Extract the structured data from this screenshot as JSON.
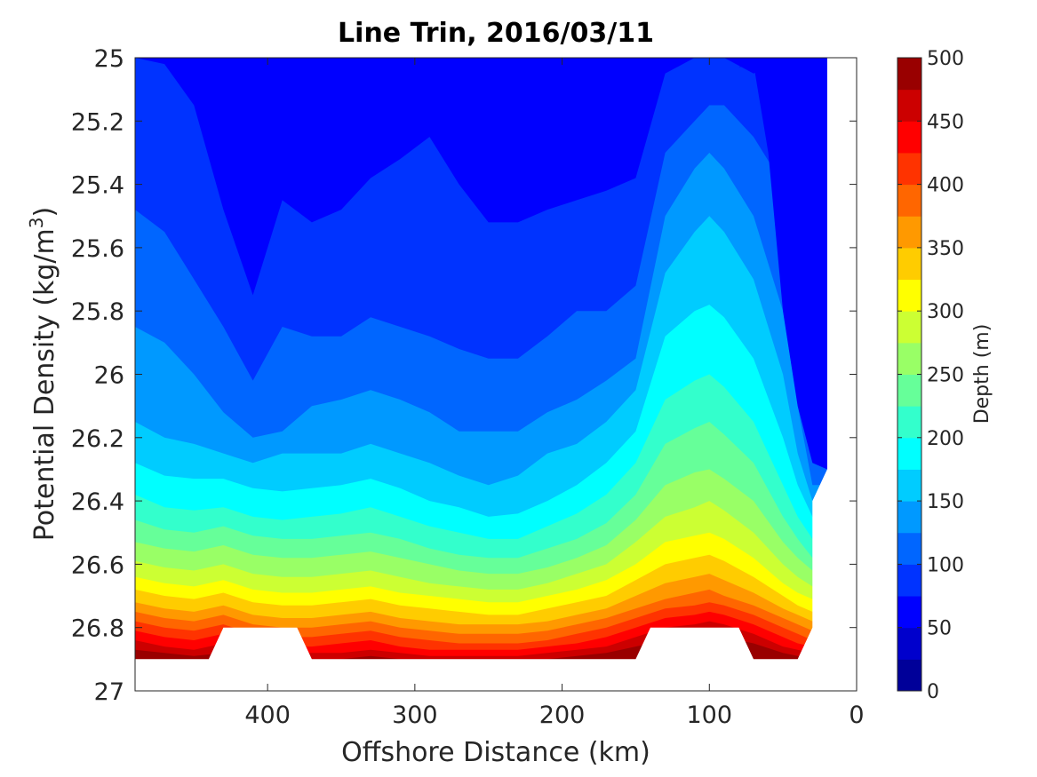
{
  "chart_data": {
    "type": "heatmap",
    "title": "Line Trin, 2016/03/11",
    "xlabel": "Offshore Distance (km)",
    "ylabel_main": "Potential Density (kg/m",
    "ylabel_sup": "3",
    "ylabel_close": ")",
    "xlim": [
      490,
      0
    ],
    "ylim": [
      25,
      27
    ],
    "x_reversed": true,
    "y_reversed": true,
    "x_ticks": [
      400,
      300,
      200,
      100,
      0
    ],
    "x_tick_labels": [
      "400",
      "300",
      "200",
      "100",
      "0"
    ],
    "y_ticks": [
      25,
      25.2,
      25.4,
      25.6,
      25.8,
      26,
      26.2,
      26.4,
      26.6,
      26.8,
      27
    ],
    "y_tick_labels": [
      "25",
      "25.2",
      "25.4",
      "25.6",
      "25.8",
      "26",
      "26.2",
      "26.4",
      "26.6",
      "26.8",
      "27"
    ],
    "colorbar": {
      "label": "Depth (m)",
      "range": [
        0,
        500
      ],
      "levels": 20,
      "ticks": [
        0,
        50,
        100,
        150,
        200,
        250,
        300,
        350,
        400,
        450,
        500
      ],
      "tick_labels": [
        "0",
        "50",
        "100",
        "150",
        "200",
        "250",
        "300",
        "350",
        "400",
        "450",
        "500"
      ],
      "colormap": "jet"
    },
    "grid": false,
    "x": [
      490,
      470,
      450,
      430,
      410,
      390,
      370,
      350,
      330,
      310,
      290,
      270,
      250,
      230,
      210,
      190,
      170,
      150,
      130,
      110,
      100,
      90,
      70,
      50,
      40,
      30,
      20
    ],
    "contours": [
      {
        "level": 75,
        "y": [
          25.0,
          25.02,
          25.15,
          25.48,
          25.75,
          25.45,
          25.52,
          25.48,
          25.38,
          25.32,
          25.25,
          25.4,
          25.52,
          25.52,
          25.48,
          25.45,
          25.42,
          25.38,
          25.05,
          25.0,
          25.0,
          25.0,
          25.05,
          25.0,
          25.0,
          25.0,
          25.0
        ]
      },
      {
        "level": 100,
        "y": [
          25.48,
          25.55,
          25.7,
          25.85,
          26.02,
          25.85,
          25.88,
          25.88,
          25.82,
          25.85,
          25.88,
          25.92,
          25.95,
          25.95,
          25.88,
          25.8,
          25.8,
          25.72,
          25.3,
          25.2,
          25.15,
          25.15,
          25.25,
          25.4,
          25.9,
          26.2,
          26.3
        ]
      },
      {
        "level": 125,
        "y": [
          25.85,
          25.9,
          26.0,
          26.12,
          26.2,
          26.18,
          26.1,
          26.08,
          26.05,
          26.08,
          26.12,
          26.18,
          26.18,
          26.18,
          26.12,
          26.08,
          26.02,
          25.95,
          25.5,
          25.35,
          25.3,
          25.35,
          25.5,
          25.8,
          26.1,
          26.35,
          26.35
        ]
      },
      {
        "level": 150,
        "y": [
          26.15,
          26.2,
          26.22,
          26.25,
          26.28,
          26.25,
          26.25,
          26.25,
          26.22,
          26.25,
          26.28,
          26.32,
          26.35,
          26.32,
          26.25,
          26.22,
          26.15,
          26.05,
          25.68,
          25.55,
          25.5,
          25.55,
          25.7,
          26.0,
          26.25,
          26.4,
          26.4
        ]
      },
      {
        "level": 175,
        "y": [
          26.28,
          26.32,
          26.33,
          26.33,
          26.36,
          26.37,
          26.36,
          26.35,
          26.33,
          26.36,
          26.4,
          26.42,
          26.45,
          26.44,
          26.4,
          26.35,
          26.28,
          26.18,
          25.88,
          25.8,
          25.78,
          25.82,
          25.95,
          26.2,
          26.35,
          26.45,
          26.45
        ]
      },
      {
        "level": 200,
        "y": [
          26.38,
          26.42,
          26.43,
          26.42,
          26.45,
          26.46,
          26.45,
          26.44,
          26.42,
          26.45,
          26.48,
          26.5,
          26.52,
          26.52,
          26.48,
          26.44,
          26.38,
          26.28,
          26.08,
          26.02,
          26.0,
          26.04,
          26.15,
          26.35,
          26.45,
          26.52,
          26.52
        ]
      },
      {
        "level": 225,
        "y": [
          26.46,
          26.49,
          26.5,
          26.48,
          26.51,
          26.52,
          26.52,
          26.51,
          26.5,
          26.52,
          26.55,
          26.57,
          26.58,
          26.58,
          26.55,
          26.52,
          26.47,
          26.38,
          26.22,
          26.17,
          26.15,
          26.19,
          26.28,
          26.45,
          26.52,
          26.58,
          26.58
        ]
      },
      {
        "level": 250,
        "y": [
          26.53,
          26.55,
          26.56,
          26.54,
          26.57,
          26.58,
          26.58,
          26.57,
          26.56,
          26.58,
          26.6,
          26.62,
          26.63,
          26.63,
          26.61,
          26.58,
          26.54,
          26.46,
          26.35,
          26.31,
          26.3,
          26.33,
          26.4,
          26.53,
          26.58,
          26.62,
          26.62
        ]
      },
      {
        "level": 275,
        "y": [
          26.59,
          26.61,
          26.62,
          26.6,
          26.63,
          26.64,
          26.64,
          26.63,
          26.62,
          26.64,
          26.66,
          26.67,
          26.68,
          26.68,
          26.66,
          26.63,
          26.6,
          26.53,
          26.45,
          26.42,
          26.4,
          26.43,
          26.5,
          26.6,
          26.64,
          26.67,
          26.67
        ]
      },
      {
        "level": 300,
        "y": [
          26.64,
          26.66,
          26.67,
          26.65,
          26.68,
          26.69,
          26.69,
          26.68,
          26.67,
          26.69,
          26.7,
          26.71,
          26.72,
          26.72,
          26.7,
          26.68,
          26.65,
          26.6,
          26.53,
          26.51,
          26.5,
          26.52,
          26.58,
          26.66,
          26.69,
          26.71,
          26.71
        ]
      },
      {
        "level": 325,
        "y": [
          26.68,
          26.7,
          26.71,
          26.69,
          26.72,
          26.73,
          26.73,
          26.72,
          26.71,
          26.73,
          26.74,
          26.75,
          26.76,
          26.76,
          26.74,
          26.72,
          26.7,
          26.65,
          26.6,
          26.58,
          26.57,
          26.59,
          26.64,
          26.7,
          26.73,
          26.75,
          26.75
        ]
      },
      {
        "level": 350,
        "y": [
          26.72,
          26.74,
          26.75,
          26.73,
          26.76,
          26.77,
          26.77,
          26.76,
          26.75,
          26.77,
          26.78,
          26.79,
          26.79,
          26.79,
          26.78,
          26.76,
          26.74,
          26.7,
          26.66,
          26.64,
          26.63,
          26.65,
          26.69,
          26.74,
          26.76,
          26.78,
          26.78
        ]
      },
      {
        "level": 375,
        "y": [
          26.75,
          26.77,
          26.78,
          26.76,
          26.79,
          26.8,
          26.8,
          26.79,
          26.78,
          26.8,
          26.81,
          26.82,
          26.82,
          26.82,
          26.81,
          26.79,
          26.77,
          26.74,
          26.71,
          26.69,
          26.68,
          26.7,
          26.73,
          26.77,
          26.79,
          26.81,
          26.81
        ]
      },
      {
        "level": 400,
        "y": [
          26.78,
          26.8,
          26.81,
          26.79,
          26.82,
          26.83,
          26.83,
          26.82,
          26.81,
          26.83,
          26.84,
          26.85,
          26.85,
          26.85,
          26.84,
          26.82,
          26.8,
          26.77,
          26.74,
          26.73,
          26.72,
          26.73,
          26.76,
          26.8,
          26.82,
          26.84,
          26.84
        ]
      },
      {
        "level": 425,
        "y": [
          26.81,
          26.83,
          26.84,
          26.82,
          26.85,
          26.86,
          26.86,
          26.85,
          26.84,
          26.86,
          26.87,
          26.87,
          26.87,
          26.87,
          26.86,
          26.85,
          26.83,
          26.8,
          26.77,
          26.76,
          26.75,
          26.76,
          26.79,
          26.83,
          26.85,
          26.86,
          26.86
        ]
      },
      {
        "level": 450,
        "y": [
          26.84,
          26.86,
          26.87,
          26.85,
          26.88,
          26.88,
          26.88,
          26.88,
          26.87,
          26.88,
          26.89,
          26.89,
          26.89,
          26.89,
          26.88,
          26.87,
          26.86,
          26.83,
          26.8,
          26.79,
          26.78,
          26.79,
          26.82,
          26.86,
          26.87,
          26.88,
          26.88
        ]
      },
      {
        "level": 475,
        "y": [
          26.87,
          26.88,
          26.89,
          26.88,
          26.9,
          26.9,
          26.9,
          26.9,
          26.89,
          26.9,
          26.9,
          26.9,
          26.9,
          26.9,
          26.9,
          26.89,
          26.88,
          26.86,
          26.84,
          26.83,
          26.82,
          26.83,
          26.85,
          26.88,
          26.89,
          26.9,
          26.9
        ]
      }
    ],
    "min_depth_band": {
      "level": 50,
      "x": [
        360,
        350,
        300,
        90,
        80,
        70,
        60,
        50,
        40,
        30,
        20
      ],
      "y_top": [
        25.0,
        25.02,
        25.0,
        25.0,
        25.03,
        25.0,
        25.0,
        25.0,
        25.0,
        25.0,
        25.0
      ],
      "y_bot": [
        25.0,
        25.02,
        25.0,
        25.0,
        25.03,
        25.02,
        25.3,
        25.8,
        26.1,
        26.28,
        26.3
      ]
    },
    "mask": {
      "x": [
        490,
        440,
        430,
        380,
        370,
        150,
        140,
        80,
        70,
        40,
        30,
        30,
        20,
        20,
        0,
        0,
        490
      ],
      "y": [
        26.9,
        26.9,
        26.8,
        26.8,
        26.9,
        26.9,
        26.8,
        26.8,
        26.9,
        26.9,
        26.8,
        26.4,
        26.3,
        25.0,
        25.0,
        27.0,
        27.0
      ]
    }
  }
}
